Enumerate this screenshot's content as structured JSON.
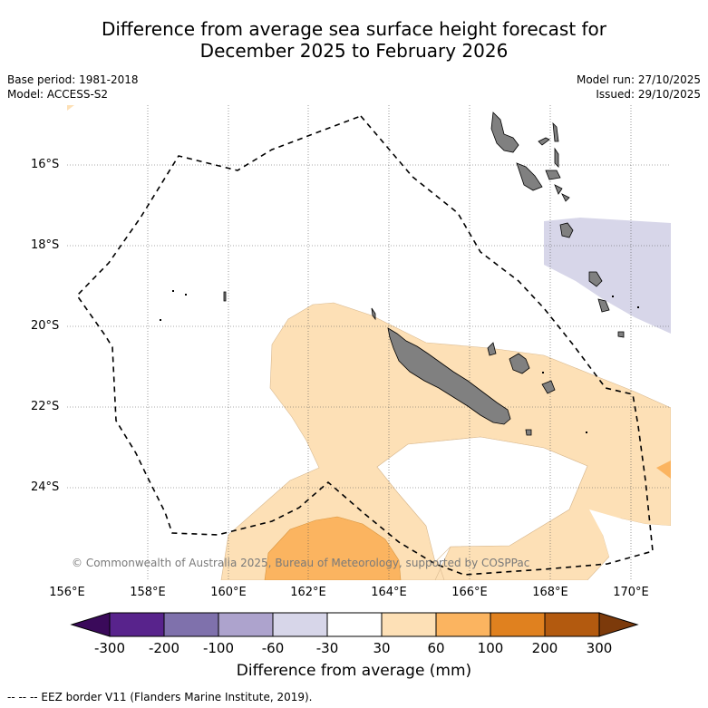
{
  "title_line1": "Difference from average sea surface height forecast for",
  "title_line2": "December 2025 to February 2026",
  "meta_left": {
    "base_period": "Base period: 1981-2018",
    "model": "Model: ACCESS-S2"
  },
  "meta_right": {
    "model_run": "Model run: 27/10/2025",
    "issued": "Issued: 29/10/2025"
  },
  "lat_labels": [
    "16°S",
    "18°S",
    "20°S",
    "22°S",
    "24°S"
  ],
  "lon_labels": [
    "156°E",
    "158°E",
    "160°E",
    "162°E",
    "164°E",
    "166°E",
    "168°E",
    "170°E"
  ],
  "copyright": "© Commonwealth of Australia 2025, Bureau of Meteorology, supported by COSPPac",
  "colorbar": {
    "title": "Difference from average (mm)",
    "labels": [
      "-300",
      "-200",
      "-100",
      "-60",
      "-30",
      "30",
      "60",
      "100",
      "200",
      "300"
    ],
    "colors": [
      "#3a0a5a",
      "#58238c",
      "#7f71ac",
      "#ada3cd",
      "#d7d6e9",
      "#ffffff",
      "#fde0b6",
      "#fbb460",
      "#e0811f",
      "#b35a0f",
      "#7c3a0b"
    ]
  },
  "legend_text": "--  --  -- EEZ border V11 (Flanders Marine Institute, 2019).",
  "colors": {
    "land": "#808080",
    "coast": "#000000",
    "grid": "#555555"
  }
}
